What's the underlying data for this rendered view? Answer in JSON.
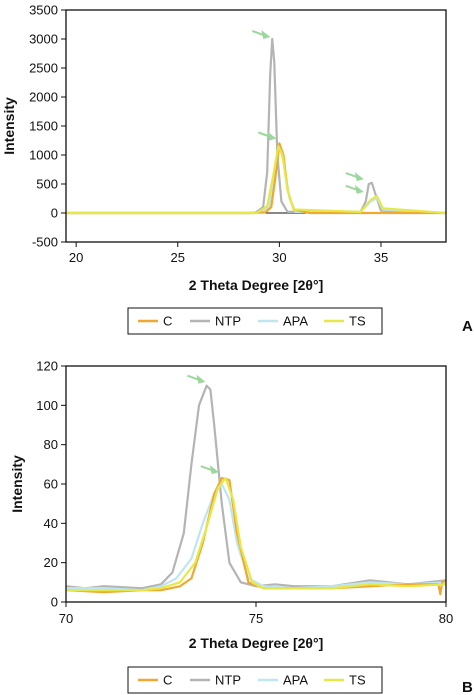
{
  "colors": {
    "C": "#f0a830",
    "NTP": "#b4b4b4",
    "APA": "#bfe6f0",
    "TS": "#e6e84a",
    "arrow": "#9cd89c"
  },
  "chart_data": [
    {
      "type": "line",
      "panel": "A",
      "xlabel": "2 Theta Degree [2θ°]",
      "ylabel": "Intensity",
      "xlim": [
        19.5,
        38.2
      ],
      "ylim": [
        -500,
        3500
      ],
      "xticks": [
        20,
        25,
        30,
        35
      ],
      "yticks": [
        -500,
        0,
        500,
        1000,
        1500,
        2000,
        2500,
        3000,
        3500
      ],
      "grid": false,
      "legend": [
        "C",
        "NTP",
        "APA",
        "TS"
      ],
      "legend_position": "bottom",
      "series": [
        {
          "name": "C",
          "x": [
            19.5,
            28.5,
            29.3,
            29.6,
            29.8,
            30.0,
            30.2,
            30.4,
            30.7,
            31.5,
            38.2
          ],
          "y": [
            0,
            0,
            10,
            100,
            600,
            1200,
            1000,
            400,
            60,
            0,
            0
          ]
        },
        {
          "name": "NTP",
          "x": [
            19.5,
            28.8,
            29.2,
            29.4,
            29.55,
            29.65,
            29.75,
            29.9,
            30.1,
            30.4,
            34.0,
            34.25,
            34.4,
            34.55,
            34.75,
            35.0,
            38.2
          ],
          "y": [
            0,
            0,
            100,
            700,
            2400,
            3000,
            2600,
            1000,
            200,
            20,
            20,
            200,
            500,
            520,
            300,
            40,
            0
          ]
        },
        {
          "name": "APA",
          "x": [
            19.5,
            29.0,
            29.5,
            29.8,
            30.0,
            30.2,
            30.5,
            30.8,
            34.0,
            34.5,
            34.8,
            35.1,
            38.2
          ],
          "y": [
            0,
            0,
            100,
            700,
            1150,
            900,
            250,
            20,
            20,
            200,
            260,
            60,
            0
          ]
        },
        {
          "name": "TS",
          "x": [
            19.5,
            28.9,
            29.4,
            29.7,
            29.95,
            30.15,
            30.4,
            30.7,
            34.0,
            34.5,
            34.8,
            35.1,
            38.2
          ],
          "y": [
            0,
            0,
            120,
            650,
            1150,
            1000,
            400,
            60,
            20,
            230,
            290,
            80,
            0
          ]
        }
      ],
      "annotations": [
        {
          "type": "arrow",
          "x": 29.7,
          "y": 3000
        },
        {
          "type": "arrow",
          "x": 30.0,
          "y": 1250
        },
        {
          "type": "arrow",
          "x": 34.3,
          "y": 550
        },
        {
          "type": "arrow",
          "x": 34.3,
          "y": 330
        }
      ],
      "panel_label": "A"
    },
    {
      "type": "line",
      "panel": "B",
      "xlabel": "2 Theta Degree [2θ°]",
      "ylabel": "Intensity",
      "xlim": [
        70,
        80
      ],
      "ylim": [
        0,
        120
      ],
      "xticks": [
        70,
        75,
        80
      ],
      "yticks": [
        0,
        20,
        40,
        60,
        80,
        100,
        120
      ],
      "grid": false,
      "legend": [
        "C",
        "NTP",
        "APA",
        "TS"
      ],
      "legend_position": "bottom",
      "series": [
        {
          "name": "C",
          "x": [
            70.0,
            71.0,
            72.0,
            72.5,
            73.0,
            73.3,
            73.6,
            73.9,
            74.1,
            74.3,
            74.5,
            74.8,
            75.2,
            76.0,
            77.0,
            78.0,
            79.0,
            79.8,
            79.85,
            79.9,
            80.0
          ],
          "y": [
            6,
            5,
            6,
            6,
            8,
            12,
            30,
            55,
            63,
            62,
            35,
            10,
            7,
            7,
            7,
            8,
            9,
            9,
            4,
            10,
            11
          ]
        },
        {
          "name": "NTP",
          "x": [
            70.0,
            70.5,
            71.0,
            72.0,
            72.5,
            72.8,
            73.1,
            73.3,
            73.5,
            73.7,
            73.8,
            73.9,
            74.1,
            74.3,
            74.6,
            75.0,
            75.5,
            76.0,
            77.0,
            78.0,
            79.0,
            80.0
          ],
          "y": [
            8,
            7,
            8,
            7,
            9,
            15,
            35,
            70,
            100,
            110,
            108,
            90,
            50,
            20,
            10,
            8,
            9,
            8,
            8,
            11,
            9,
            11
          ]
        },
        {
          "name": "APA",
          "x": [
            70.0,
            71.0,
            72.0,
            72.5,
            72.9,
            73.3,
            73.6,
            73.9,
            74.1,
            74.3,
            74.5,
            74.8,
            75.2,
            76.0,
            77.0,
            78.0,
            79.0,
            80.0
          ],
          "y": [
            7,
            7,
            6,
            8,
            12,
            22,
            40,
            55,
            60,
            52,
            30,
            12,
            8,
            7,
            8,
            10,
            9,
            10
          ]
        },
        {
          "name": "TS",
          "x": [
            70.0,
            71.0,
            72.0,
            72.5,
            73.0,
            73.4,
            73.7,
            74.0,
            74.2,
            74.4,
            74.6,
            74.9,
            75.2,
            76.0,
            77.0,
            78.0,
            79.0,
            80.0
          ],
          "y": [
            6,
            6,
            6,
            7,
            10,
            20,
            38,
            58,
            63,
            52,
            28,
            10,
            7,
            7,
            7,
            9,
            8,
            9
          ]
        }
      ],
      "annotations": [
        {
          "type": "arrow",
          "x": 73.75,
          "y": 111
        },
        {
          "type": "arrow",
          "x": 74.1,
          "y": 65
        }
      ],
      "panel_label": "B"
    }
  ]
}
